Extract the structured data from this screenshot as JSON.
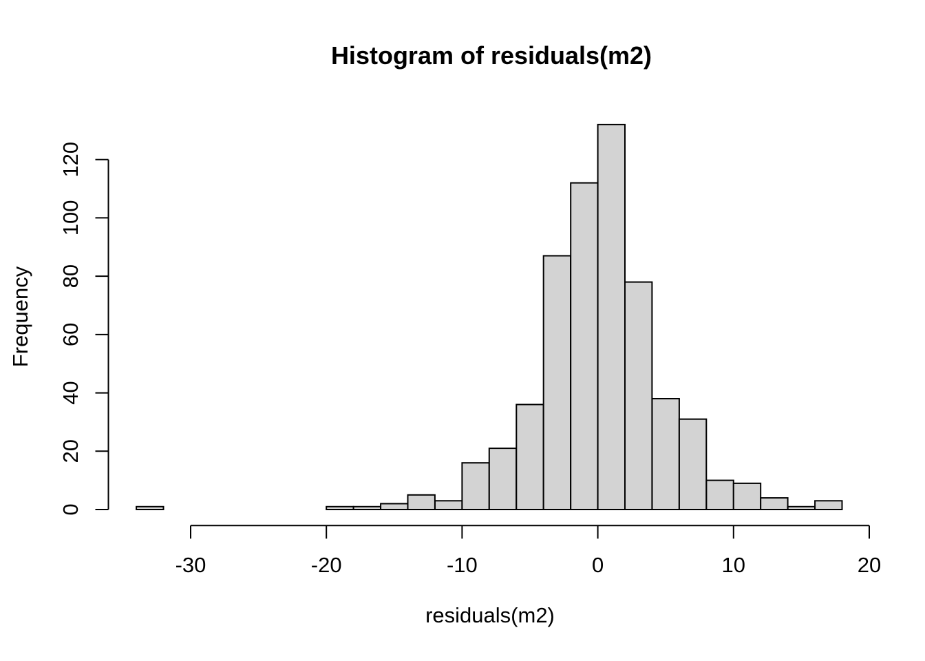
{
  "chart_data": {
    "type": "bar",
    "subtype": "histogram",
    "title": "Histogram of residuals(m2)",
    "xlabel": "residuals(m2)",
    "ylabel": "Frequency",
    "breaks": [
      -34,
      -32,
      -30,
      -28,
      -26,
      -24,
      -22,
      -20,
      -18,
      -16,
      -14,
      -12,
      -10,
      -8,
      -6,
      -4,
      -2,
      0,
      2,
      4,
      6,
      8,
      10,
      12,
      14,
      16,
      18
    ],
    "counts": [
      1,
      0,
      0,
      0,
      0,
      0,
      0,
      1,
      1,
      2,
      5,
      3,
      16,
      21,
      36,
      87,
      112,
      132,
      78,
      38,
      31,
      10,
      9,
      4,
      1,
      3
    ],
    "x_ticks": [
      -30,
      -20,
      -10,
      0,
      10,
      20
    ],
    "x_tick_labels": [
      "-30",
      "-20",
      "-10",
      "0",
      "10",
      "20"
    ],
    "y_ticks": [
      0,
      20,
      40,
      60,
      80,
      100,
      120
    ],
    "y_tick_labels": [
      "0",
      "20",
      "40",
      "60",
      "80",
      "100",
      "120"
    ],
    "xlim": [
      -36,
      20
    ],
    "ylim": [
      0,
      132
    ],
    "grid": false,
    "legend": null,
    "colors": {
      "bar_fill": "#d3d3d3",
      "bar_stroke": "#000000",
      "axis": "#000000",
      "text": "#000000",
      "background": "#ffffff"
    }
  }
}
